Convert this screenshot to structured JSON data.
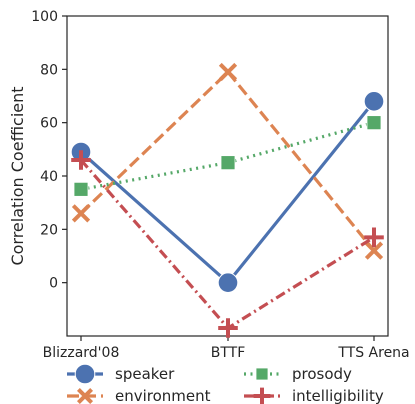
{
  "chart_data": {
    "type": "line",
    "title": "",
    "xlabel": "",
    "ylabel": "Correlation Coefficient",
    "categories": [
      "Blizzard'08",
      "BTTF",
      "TTS Arena"
    ],
    "ylim": [
      -20,
      100
    ],
    "yticks": [
      0,
      20,
      40,
      60,
      80,
      100
    ],
    "grid": false,
    "legend_position": "bottom",
    "series": [
      {
        "name": "speaker",
        "values": [
          49,
          0,
          68
        ],
        "color": "#4c72b0",
        "line_style": "solid",
        "marker": "circle"
      },
      {
        "name": "environment",
        "values": [
          26,
          79,
          12
        ],
        "color": "#dd8452",
        "line_style": "dashed",
        "marker": "x"
      },
      {
        "name": "prosody",
        "values": [
          35,
          45,
          60
        ],
        "color": "#55a868",
        "line_style": "dotted",
        "marker": "square"
      },
      {
        "name": "intelligibility",
        "values": [
          46,
          -17,
          17
        ],
        "color": "#c44e52",
        "line_style": "dashdot",
        "marker": "plus"
      }
    ]
  }
}
